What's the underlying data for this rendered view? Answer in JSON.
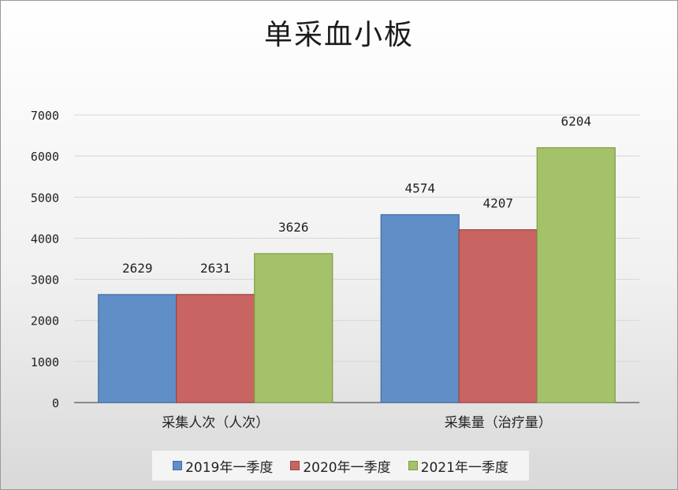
{
  "chart_data": {
    "type": "bar",
    "title": "单采血小板",
    "categories": [
      "采集人次（人次）",
      "采集量（治疗量）"
    ],
    "series": [
      {
        "name": "2019年一季度",
        "values": [
          2629,
          4574
        ],
        "color": "#5f8fc6",
        "stroke": "#3e6ea8"
      },
      {
        "name": "2020年一季度",
        "values": [
          2631,
          4207
        ],
        "color": "#c86563",
        "stroke": "#9e4442"
      },
      {
        "name": "2021年一季度",
        "values": [
          3626,
          6204
        ],
        "color": "#a4c26a",
        "stroke": "#7f9c45"
      }
    ],
    "ylim": [
      0,
      7000
    ],
    "yticks": [
      0,
      1000,
      2000,
      3000,
      4000,
      5000,
      6000,
      7000
    ],
    "grid": true,
    "legend_position": "bottom"
  }
}
